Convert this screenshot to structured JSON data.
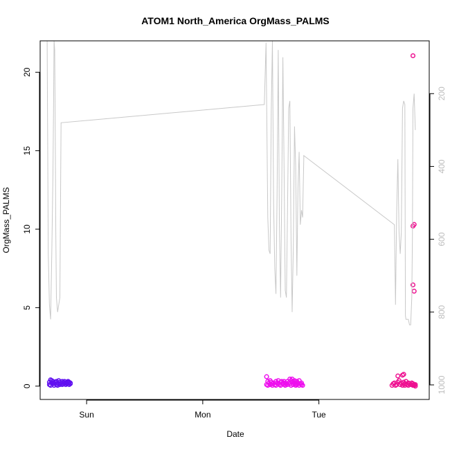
{
  "chart_data": {
    "type": "scatter",
    "title": "ATOM1 North_America OrgMass_PALMS",
    "xlabel": "Date",
    "ylabel": "OrgMass_PALMS",
    "x_axis": {
      "unit": "days (Sun = 1.0, Mon = 2.0, Tue = 3.0)",
      "range": [
        0.6,
        3.95
      ],
      "ticks": [
        {
          "value": 1.0,
          "label": "Sun"
        },
        {
          "value": 2.0,
          "label": "Mon"
        },
        {
          "value": 3.0,
          "label": "Tue"
        }
      ]
    },
    "y_axis": {
      "range": [
        -0.85,
        22
      ],
      "ticks": [
        0,
        5,
        10,
        15,
        20
      ]
    },
    "y2_axis": {
      "label_color": "#bdbdbd",
      "range": [
        1040,
        55
      ],
      "reversed": true,
      "ticks": [
        200,
        400,
        600,
        800,
        1000
      ]
    },
    "grid": false,
    "series": [
      {
        "kind": "points",
        "color": "#6010f0",
        "marker": "open-circle",
        "points": [
          [
            0.68,
            0.1
          ],
          [
            0.68,
            0.25
          ],
          [
            0.69,
            0.4
          ],
          [
            0.69,
            0.05
          ],
          [
            0.7,
            0.2
          ],
          [
            0.7,
            0.35
          ],
          [
            0.71,
            0.15
          ],
          [
            0.71,
            0.3
          ],
          [
            0.72,
            0.05
          ],
          [
            0.72,
            0.2
          ],
          [
            0.73,
            0.25
          ],
          [
            0.74,
            0.1
          ],
          [
            0.74,
            0.3
          ],
          [
            0.75,
            0.2
          ],
          [
            0.75,
            0.05
          ],
          [
            0.76,
            0.15
          ],
          [
            0.76,
            0.35
          ],
          [
            0.77,
            0.1
          ],
          [
            0.77,
            0.25
          ],
          [
            0.78,
            0.2
          ],
          [
            0.79,
            0.3
          ],
          [
            0.79,
            0.1
          ],
          [
            0.8,
            0.15
          ],
          [
            0.8,
            0.25
          ],
          [
            0.81,
            0.2
          ],
          [
            0.81,
            0.3
          ],
          [
            0.82,
            0.1
          ],
          [
            0.82,
            0.2
          ],
          [
            0.83,
            0.25
          ],
          [
            0.83,
            0.15
          ],
          [
            0.84,
            0.2
          ],
          [
            0.84,
            0.3
          ],
          [
            0.85,
            0.1
          ],
          [
            0.85,
            0.25
          ],
          [
            0.86,
            0.15
          ],
          [
            0.86,
            0.2
          ]
        ]
      },
      {
        "kind": "points",
        "color": "#ee10ee",
        "marker": "open-circle",
        "points": [
          [
            2.55,
            0.6
          ],
          [
            2.55,
            0.1
          ],
          [
            2.56,
            0.3
          ],
          [
            2.56,
            0.05
          ],
          [
            2.57,
            0.2
          ],
          [
            2.58,
            0.35
          ],
          [
            2.58,
            0.1
          ],
          [
            2.59,
            0.25
          ],
          [
            2.6,
            0.05
          ],
          [
            2.6,
            0.15
          ],
          [
            2.61,
            0.2
          ],
          [
            2.62,
            0.1
          ],
          [
            2.63,
            0.3
          ],
          [
            2.63,
            0.05
          ],
          [
            2.64,
            0.2
          ],
          [
            2.65,
            0.15
          ],
          [
            2.65,
            0.35
          ],
          [
            2.66,
            0.1
          ],
          [
            2.67,
            0.25
          ],
          [
            2.67,
            0.05
          ],
          [
            2.68,
            0.3
          ],
          [
            2.69,
            0.15
          ],
          [
            2.69,
            0.2
          ],
          [
            2.7,
            0.1
          ],
          [
            2.7,
            0.3
          ],
          [
            2.71,
            0.2
          ],
          [
            2.71,
            0.05
          ],
          [
            2.72,
            0.15
          ],
          [
            2.73,
            0.3
          ],
          [
            2.73,
            0.1
          ],
          [
            2.74,
            0.2
          ],
          [
            2.75,
            0.45
          ],
          [
            2.75,
            0.15
          ],
          [
            2.76,
            0.35
          ],
          [
            2.76,
            0.05
          ],
          [
            2.77,
            0.25
          ],
          [
            2.77,
            0.45
          ],
          [
            2.78,
            0.3
          ],
          [
            2.78,
            0.1
          ],
          [
            2.79,
            0.2
          ],
          [
            2.79,
            0.35
          ],
          [
            2.8,
            0.15
          ],
          [
            2.8,
            0.05
          ],
          [
            2.81,
            0.3
          ],
          [
            2.81,
            0.1
          ],
          [
            2.82,
            0.2
          ],
          [
            2.83,
            0.35
          ],
          [
            2.83,
            0.05
          ],
          [
            2.84,
            0.15
          ],
          [
            2.85,
            0.1
          ],
          [
            2.85,
            0.2
          ],
          [
            2.86,
            0.05
          ]
        ]
      },
      {
        "kind": "points",
        "color": "#ee1090",
        "marker": "open-circle",
        "points": [
          [
            3.63,
            0.05
          ],
          [
            3.64,
            0.15
          ],
          [
            3.65,
            0.2
          ],
          [
            3.66,
            0.05
          ],
          [
            3.67,
            0.1
          ],
          [
            3.68,
            0.25
          ],
          [
            3.68,
            0.65
          ],
          [
            3.69,
            0.35
          ],
          [
            3.7,
            0.1
          ],
          [
            3.71,
            0.2
          ],
          [
            3.72,
            0.05
          ],
          [
            3.72,
            0.7
          ],
          [
            3.73,
            0.75
          ],
          [
            3.73,
            0.25
          ],
          [
            3.74,
            0.15
          ],
          [
            3.74,
            0.05
          ],
          [
            3.75,
            0.3
          ],
          [
            3.76,
            0.1
          ],
          [
            3.77,
            0.2
          ],
          [
            3.77,
            0.05
          ],
          [
            3.78,
            0.15
          ],
          [
            3.79,
            0.1
          ],
          [
            3.8,
            0.2
          ],
          [
            3.81,
            0.05
          ],
          [
            3.81,
            0.15
          ],
          [
            3.82,
            0.1
          ],
          [
            3.82,
            0.05
          ],
          [
            3.83,
            0.1
          ],
          [
            3.83,
            0.0
          ],
          [
            3.81,
            21.05
          ],
          [
            3.81,
            10.2
          ],
          [
            3.82,
            10.3
          ],
          [
            3.81,
            6.45
          ],
          [
            3.82,
            6.05
          ]
        ]
      },
      {
        "kind": "line",
        "axis": "y2",
        "color": "#c8c8c8",
        "points": [
          [
            0.66,
            55
          ],
          [
            0.67,
            640
          ],
          [
            0.68,
            780
          ],
          [
            0.69,
            820
          ],
          [
            0.7,
            640
          ],
          [
            0.71,
            420
          ],
          [
            0.715,
            250
          ],
          [
            0.72,
            55
          ],
          [
            0.725,
            80
          ],
          [
            0.73,
            300
          ],
          [
            0.735,
            580
          ],
          [
            0.74,
            760
          ],
          [
            0.75,
            800
          ],
          [
            0.76,
            780
          ],
          [
            0.77,
            760
          ],
          [
            0.78,
            280
          ],
          [
            2.53,
            230
          ],
          [
            2.545,
            60
          ],
          [
            2.56,
            540
          ],
          [
            2.57,
            630
          ],
          [
            2.58,
            640
          ],
          [
            2.59,
            250
          ],
          [
            2.6,
            55
          ],
          [
            2.61,
            500
          ],
          [
            2.62,
            680
          ],
          [
            2.63,
            750
          ],
          [
            2.64,
            480
          ],
          [
            2.65,
            80
          ],
          [
            2.66,
            570
          ],
          [
            2.67,
            760
          ],
          [
            2.68,
            480
          ],
          [
            2.69,
            100
          ],
          [
            2.7,
            400
          ],
          [
            2.71,
            740
          ],
          [
            2.72,
            760
          ],
          [
            2.73,
            520
          ],
          [
            2.74,
            240
          ],
          [
            2.75,
            220
          ],
          [
            2.76,
            600
          ],
          [
            2.77,
            800
          ],
          [
            2.78,
            620
          ],
          [
            2.79,
            290
          ],
          [
            2.8,
            400
          ],
          [
            2.81,
            700
          ],
          [
            2.82,
            460
          ],
          [
            2.83,
            360
          ],
          [
            2.84,
            560
          ],
          [
            2.85,
            520
          ],
          [
            2.86,
            540
          ],
          [
            2.87,
            380
          ],
          [
            2.87,
            370
          ],
          [
            3.65,
            560
          ],
          [
            3.66,
            780
          ],
          [
            3.67,
            520
          ],
          [
            3.68,
            380
          ],
          [
            3.69,
            580
          ],
          [
            3.7,
            640
          ],
          [
            3.71,
            580
          ],
          [
            3.72,
            240
          ],
          [
            3.73,
            220
          ],
          [
            3.74,
            230
          ],
          [
            3.745,
            810
          ],
          [
            3.75,
            820
          ],
          [
            3.77,
            820
          ],
          [
            3.78,
            835
          ],
          [
            3.79,
            835
          ],
          [
            3.8,
            760
          ],
          [
            3.805,
            600
          ],
          [
            3.81,
            240
          ],
          [
            3.82,
            200
          ],
          [
            3.83,
            300
          ]
        ]
      }
    ]
  }
}
